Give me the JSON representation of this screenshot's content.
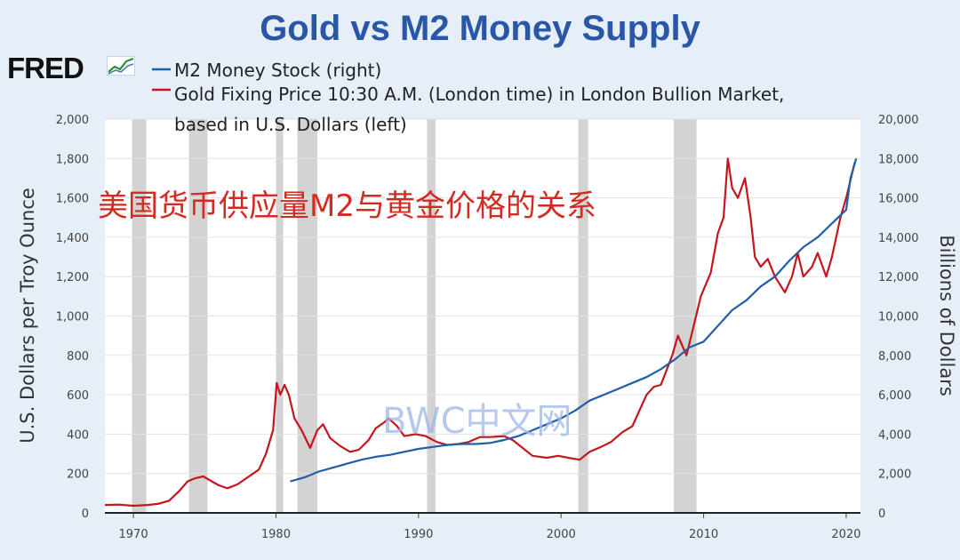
{
  "title": "Gold vs M2 Money Supply",
  "logo_text": "FRED",
  "logo_icon": "chart-line-icon",
  "overlay_text": "美国货币供应量M2与黄金价格的关系",
  "watermark": "BWC中文网",
  "colors": {
    "title": "#2a56a8",
    "gold": "#c4161c",
    "m2": "#1f5fa8",
    "recession": "#d3d3d3",
    "background": "#e6eef8",
    "overlay": "#d42a22"
  },
  "chart_data": {
    "type": "line",
    "xlim": [
      1968,
      2021
    ],
    "xticks": [
      1970,
      1980,
      1990,
      2000,
      2010,
      2020
    ],
    "y_left": {
      "label": "U.S. Dollars per Troy Ounce",
      "ylim": [
        0,
        2000
      ],
      "ticks": [
        "0",
        "200",
        "400",
        "600",
        "800",
        "1,000",
        "1,200",
        "1,400",
        "1,600",
        "1,800",
        "2,000"
      ]
    },
    "y_right": {
      "label": "Billions of Dollars",
      "ylim": [
        0,
        20000
      ],
      "ticks": [
        "0",
        "2,000",
        "4,000",
        "6,000",
        "8,000",
        "10,000",
        "12,000",
        "14,000",
        "16,000",
        "18,000",
        "20,000"
      ]
    },
    "legend": {
      "placement": "top-left",
      "items": [
        {
          "key": "m2",
          "lines": [
            "M2 Money Stock (right)"
          ]
        },
        {
          "key": "gold",
          "lines": [
            "Gold Fixing Price 10:30 A.M. (London time) in London Bullion Market,",
            "based in U.S. Dollars (left)"
          ]
        }
      ]
    },
    "recessions": [
      [
        1969.9,
        1970.9
      ],
      [
        1973.9,
        1975.2
      ],
      [
        1980.0,
        1980.5
      ],
      [
        1981.5,
        1982.9
      ],
      [
        1990.6,
        1991.2
      ],
      [
        2001.2,
        2001.9
      ],
      [
        2007.9,
        2009.5
      ]
    ],
    "series": [
      {
        "key": "gold",
        "name": "Gold Fixing Price 10:30 A.M. (London time) in London Bullion Market, based in U.S. Dollars (left)",
        "axis": "left",
        "x": [
          1968.0,
          1969.0,
          1970.0,
          1971.0,
          1971.8,
          1972.5,
          1973.2,
          1973.8,
          1974.3,
          1974.9,
          1975.5,
          1976.0,
          1976.6,
          1977.3,
          1978.0,
          1978.8,
          1979.3,
          1979.8,
          1980.05,
          1980.3,
          1980.6,
          1980.9,
          1981.3,
          1981.8,
          1982.4,
          1982.9,
          1983.3,
          1983.8,
          1984.5,
          1985.2,
          1985.8,
          1986.5,
          1987.0,
          1987.6,
          1987.9,
          1988.5,
          1989.0,
          1989.8,
          1990.5,
          1991.3,
          1992.0,
          1992.8,
          1993.5,
          1994.3,
          1995.0,
          1996.0,
          1996.6,
          1997.3,
          1998.0,
          1999.0,
          1999.8,
          2000.5,
          2001.3,
          2002.0,
          2002.8,
          2003.5,
          2004.3,
          2005.0,
          2006.0,
          2006.5,
          2007.0,
          2007.8,
          2008.2,
          2008.8,
          2009.2,
          2009.8,
          2010.5,
          2011.0,
          2011.4,
          2011.7,
          2012.0,
          2012.4,
          2012.9,
          2013.3,
          2013.6,
          2014.0,
          2014.5,
          2015.0,
          2015.7,
          2016.2,
          2016.6,
          2017.0,
          2017.6,
          2018.0,
          2018.6,
          2019.0,
          2019.6,
          2020.0,
          2020.6
        ],
        "values": [
          40,
          42,
          36,
          40,
          47,
          62,
          110,
          160,
          175,
          185,
          160,
          140,
          125,
          145,
          180,
          220,
          300,
          420,
          660,
          600,
          650,
          600,
          480,
          420,
          330,
          420,
          450,
          380,
          340,
          310,
          320,
          370,
          430,
          460,
          480,
          440,
          390,
          400,
          390,
          360,
          345,
          350,
          360,
          385,
          385,
          390,
          370,
          330,
          290,
          280,
          290,
          280,
          270,
          310,
          335,
          360,
          410,
          440,
          600,
          640,
          650,
          800,
          900,
          800,
          920,
          1100,
          1220,
          1420,
          1500,
          1800,
          1650,
          1600,
          1700,
          1500,
          1300,
          1250,
          1290,
          1200,
          1120,
          1200,
          1320,
          1200,
          1250,
          1320,
          1200,
          1300,
          1500,
          1600,
          1780
        ]
      },
      {
        "key": "m2",
        "name": "M2 Money Stock (right)",
        "axis": "right",
        "x": [
          1981.0,
          1982.0,
          1983.0,
          1984.0,
          1985.0,
          1986.0,
          1987.0,
          1988.0,
          1989.0,
          1990.0,
          1991.0,
          1992.0,
          1993.0,
          1994.0,
          1995.0,
          1996.0,
          1997.0,
          1998.0,
          1999.0,
          2000.0,
          2001.0,
          2002.0,
          2003.0,
          2004.0,
          2005.0,
          2006.0,
          2007.0,
          2008.0,
          2009.0,
          2010.0,
          2011.0,
          2012.0,
          2013.0,
          2014.0,
          2015.0,
          2016.0,
          2017.0,
          2018.0,
          2019.0,
          2020.0,
          2020.3,
          2020.7
        ],
        "values": [
          1600,
          1800,
          2100,
          2300,
          2500,
          2700,
          2850,
          2950,
          3100,
          3250,
          3350,
          3450,
          3500,
          3500,
          3550,
          3700,
          3900,
          4200,
          4500,
          4800,
          5200,
          5700,
          6000,
          6300,
          6600,
          6900,
          7300,
          7800,
          8400,
          8700,
          9500,
          10300,
          10800,
          11500,
          12000,
          12800,
          13500,
          14000,
          14700,
          15400,
          17000,
          18000
        ]
      }
    ]
  }
}
